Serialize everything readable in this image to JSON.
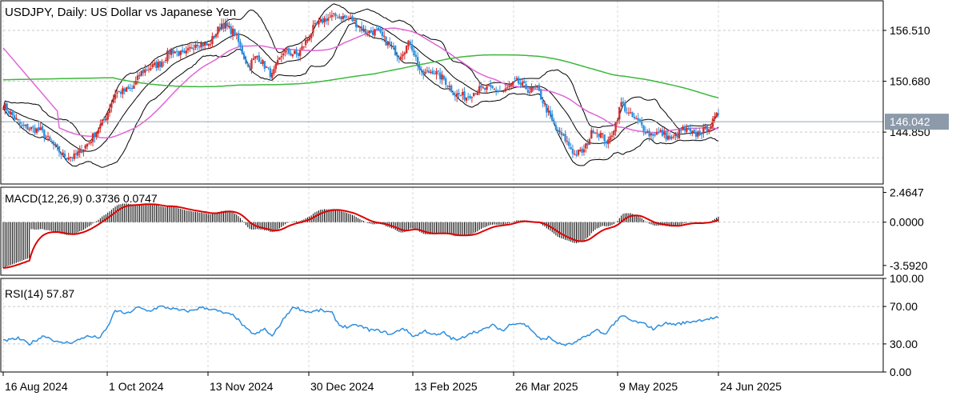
{
  "chart_data": {
    "type": "candlestick",
    "symbol": "USDJPY",
    "timeframe": "Daily",
    "title": "USDJPY, Daily:  US Dollar vs Japanese Yen",
    "x_ticks": [
      "16 Aug 2024",
      "1 Oct 2024",
      "13 Nov 2024",
      "30 Dec 2024",
      "13 Feb 2025",
      "26 Mar 2025",
      "9 May 2025",
      "24 Jun 2025"
    ],
    "price": {
      "ylim": [
        138.9,
        159.9
      ],
      "y_ticks": [
        "156.510",
        "150.680",
        "144.850"
      ],
      "last_price": "146.042",
      "indicators": [
        "Bollinger Bands",
        "Moving Average",
        "Moving Average"
      ]
    },
    "macd": {
      "label": "MACD(12,26,9) 0.3736 0.0747",
      "y_ticks": [
        "2.4647",
        "0.0000",
        "-3.5920"
      ],
      "ylim": [
        -4.4,
        2.9
      ],
      "main_last": 0.3736,
      "signal_last": 0.0747
    },
    "rsi": {
      "label": "RSI(14) 57.87",
      "y_ticks": [
        "100.00",
        "70.00",
        "30.00",
        "0.00"
      ],
      "ylim": [
        0,
        100
      ],
      "levels": [
        70,
        30
      ],
      "last": 57.87
    },
    "colors": {
      "up_candle": "#d32f2f",
      "down_candle": "#2f8fdf",
      "bollinger": "#000000",
      "ma_short": "#e066d6",
      "ma_long": "#3cb83c",
      "macd_signal": "#dd0000",
      "rsi_line": "#2f8fdf",
      "price_label_bg": "#8c9aaa"
    },
    "price_path": [
      [
        0,
        148.0
      ],
      [
        10,
        145.5
      ],
      [
        20,
        145.0
      ],
      [
        27,
        143.3
      ],
      [
        32,
        142.2
      ],
      [
        38,
        142.0
      ],
      [
        46,
        143.7
      ],
      [
        54,
        146.2
      ],
      [
        60,
        149.3
      ],
      [
        69,
        149.8
      ],
      [
        74,
        151.7
      ],
      [
        78,
        152.2
      ],
      [
        84,
        152.7
      ],
      [
        90,
        154.3
      ],
      [
        97,
        153.6
      ],
      [
        103,
        155.1
      ],
      [
        110,
        154.8
      ],
      [
        117,
        157.3
      ],
      [
        124,
        156.2
      ],
      [
        131,
        152.4
      ],
      [
        136,
        153.6
      ],
      [
        144,
        151.3
      ],
      [
        150,
        154.1
      ],
      [
        158,
        153.7
      ],
      [
        166,
        156.7
      ],
      [
        172,
        157.8
      ],
      [
        179,
        158.2
      ],
      [
        187,
        157.7
      ],
      [
        194,
        156.3
      ],
      [
        200,
        156.4
      ],
      [
        206,
        155.0
      ],
      [
        212,
        153.6
      ],
      [
        218,
        155.2
      ],
      [
        224,
        151.4
      ],
      [
        230,
        151.9
      ],
      [
        236,
        150.9
      ],
      [
        242,
        149.2
      ],
      [
        248,
        148.9
      ],
      [
        254,
        149.7
      ],
      [
        261,
        149.8
      ],
      [
        268,
        149.5
      ],
      [
        275,
        150.6
      ],
      [
        282,
        149.6
      ],
      [
        286,
        149.8
      ],
      [
        290,
        147.9
      ],
      [
        296,
        145.1
      ],
      [
        301,
        144.0
      ],
      [
        306,
        142.3
      ],
      [
        311,
        142.7
      ],
      [
        316,
        145.2
      ],
      [
        320,
        144.6
      ],
      [
        324,
        143.6
      ],
      [
        328,
        145.9
      ],
      [
        331,
        148.2
      ],
      [
        335,
        146.9
      ],
      [
        340,
        146.0
      ],
      [
        346,
        144.6
      ],
      [
        352,
        144.8
      ],
      [
        358,
        144.0
      ],
      [
        364,
        145.2
      ],
      [
        370,
        144.5
      ],
      [
        376,
        145.1
      ],
      [
        380,
        146.0
      ],
      [
        383,
        147.0
      ]
    ],
    "rsi_path": [
      [
        0,
        33
      ],
      [
        8,
        36
      ],
      [
        14,
        30
      ],
      [
        22,
        39
      ],
      [
        30,
        31
      ],
      [
        38,
        32
      ],
      [
        44,
        38
      ],
      [
        52,
        37
      ],
      [
        56,
        48
      ],
      [
        60,
        66
      ],
      [
        66,
        62
      ],
      [
        72,
        69
      ],
      [
        78,
        65
      ],
      [
        84,
        70
      ],
      [
        90,
        68
      ],
      [
        94,
        66
      ],
      [
        100,
        65
      ],
      [
        106,
        69
      ],
      [
        112,
        67
      ],
      [
        118,
        63
      ],
      [
        124,
        60
      ],
      [
        130,
        46
      ],
      [
        135,
        40
      ],
      [
        140,
        46
      ],
      [
        144,
        38
      ],
      [
        148,
        50
      ],
      [
        152,
        62
      ],
      [
        156,
        70
      ],
      [
        160,
        66
      ],
      [
        164,
        64
      ],
      [
        170,
        66
      ],
      [
        176,
        63
      ],
      [
        180,
        50
      ],
      [
        184,
        48
      ],
      [
        190,
        50
      ],
      [
        196,
        45
      ],
      [
        202,
        44
      ],
      [
        208,
        40
      ],
      [
        214,
        47
      ],
      [
        220,
        38
      ],
      [
        226,
        44
      ],
      [
        232,
        39
      ],
      [
        236,
        42
      ],
      [
        240,
        36
      ],
      [
        244,
        34
      ],
      [
        250,
        42
      ],
      [
        256,
        44
      ],
      [
        262,
        50
      ],
      [
        268,
        44
      ],
      [
        272,
        52
      ],
      [
        278,
        52
      ],
      [
        282,
        47
      ],
      [
        288,
        34
      ],
      [
        292,
        37
      ],
      [
        298,
        30
      ],
      [
        302,
        29
      ],
      [
        306,
        31
      ],
      [
        312,
        38
      ],
      [
        318,
        45
      ],
      [
        322,
        40
      ],
      [
        328,
        54
      ],
      [
        332,
        60
      ],
      [
        336,
        55
      ],
      [
        340,
        53
      ],
      [
        344,
        51
      ],
      [
        348,
        46
      ],
      [
        354,
        52
      ],
      [
        360,
        51
      ],
      [
        366,
        53
      ],
      [
        372,
        55
      ],
      [
        378,
        57
      ],
      [
        383,
        58
      ]
    ]
  }
}
